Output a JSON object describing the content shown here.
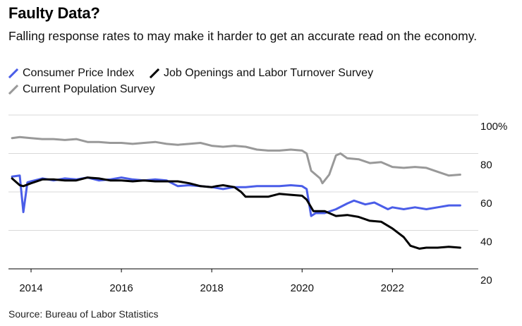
{
  "chart_data": {
    "type": "line",
    "title": "Faulty Data?",
    "subtitle": "Falling response rates to may make it harder to get an accurate read on the economy.",
    "source": "Source: Bureau of Labor Statistics",
    "xlabel": "",
    "ylabel": "",
    "xlim": [
      2013.5,
      2023.9
    ],
    "ylim": [
      20,
      100
    ],
    "x_ticks": [
      2014,
      2016,
      2018,
      2020,
      2022
    ],
    "x_tick_labels": [
      "2014",
      "2016",
      "2018",
      "2020",
      "2022"
    ],
    "y_ticks": [
      20,
      40,
      60,
      80,
      100
    ],
    "y_tick_labels": [
      "20",
      "40",
      "60",
      "80",
      "100%"
    ],
    "series": [
      {
        "name": "Consumer Price Index",
        "color": "#4a5de8",
        "points": [
          [
            2013.58,
            68
          ],
          [
            2013.75,
            68.5
          ],
          [
            2013.83,
            49.5
          ],
          [
            2013.92,
            65
          ],
          [
            2014.0,
            65.5
          ],
          [
            2014.25,
            67
          ],
          [
            2014.5,
            66
          ],
          [
            2014.75,
            67
          ],
          [
            2015.0,
            66.5
          ],
          [
            2015.25,
            67.5
          ],
          [
            2015.5,
            66
          ],
          [
            2015.75,
            66.5
          ],
          [
            2016.0,
            67.5
          ],
          [
            2016.25,
            66.5
          ],
          [
            2016.5,
            66
          ],
          [
            2016.75,
            66.5
          ],
          [
            2017.0,
            66
          ],
          [
            2017.25,
            63
          ],
          [
            2017.5,
            63.5
          ],
          [
            2017.75,
            63
          ],
          [
            2018.0,
            62.5
          ],
          [
            2018.25,
            61.5
          ],
          [
            2018.5,
            62.5
          ],
          [
            2018.75,
            62.5
          ],
          [
            2019.0,
            63
          ],
          [
            2019.25,
            63
          ],
          [
            2019.5,
            63
          ],
          [
            2019.75,
            63.5
          ],
          [
            2020.0,
            63
          ],
          [
            2020.1,
            61.5
          ],
          [
            2020.2,
            47.5
          ],
          [
            2020.3,
            49
          ],
          [
            2020.5,
            49
          ],
          [
            2020.75,
            51
          ],
          [
            2021.0,
            54
          ],
          [
            2021.15,
            55.5
          ],
          [
            2021.4,
            53.5
          ],
          [
            2021.6,
            54.5
          ],
          [
            2021.9,
            51
          ],
          [
            2022.0,
            52
          ],
          [
            2022.25,
            51
          ],
          [
            2022.5,
            52
          ],
          [
            2022.75,
            51
          ],
          [
            2023.0,
            52
          ],
          [
            2023.25,
            53
          ],
          [
            2023.5,
            53
          ]
        ]
      },
      {
        "name": "Job Openings and Labor Turnover Survey",
        "color": "#000000",
        "points": [
          [
            2013.58,
            67
          ],
          [
            2013.75,
            63.5
          ],
          [
            2013.83,
            63
          ],
          [
            2014.0,
            64.5
          ],
          [
            2014.25,
            66.5
          ],
          [
            2014.5,
            66.5
          ],
          [
            2014.75,
            66
          ],
          [
            2015.0,
            66
          ],
          [
            2015.25,
            67.5
          ],
          [
            2015.5,
            67
          ],
          [
            2015.75,
            66
          ],
          [
            2016.0,
            66
          ],
          [
            2016.25,
            65.5
          ],
          [
            2016.5,
            66
          ],
          [
            2016.75,
            65.5
          ],
          [
            2017.0,
            65.5
          ],
          [
            2017.25,
            65.5
          ],
          [
            2017.5,
            64.5
          ],
          [
            2017.75,
            63
          ],
          [
            2018.0,
            62.5
          ],
          [
            2018.1,
            63
          ],
          [
            2018.25,
            63.5
          ],
          [
            2018.5,
            62.5
          ],
          [
            2018.65,
            60
          ],
          [
            2018.75,
            57.5
          ],
          [
            2019.0,
            57.5
          ],
          [
            2019.25,
            57.5
          ],
          [
            2019.5,
            59
          ],
          [
            2019.75,
            58.5
          ],
          [
            2020.0,
            58
          ],
          [
            2020.1,
            56
          ],
          [
            2020.25,
            50
          ],
          [
            2020.5,
            50
          ],
          [
            2020.75,
            47.5
          ],
          [
            2021.0,
            48
          ],
          [
            2021.25,
            47
          ],
          [
            2021.5,
            45
          ],
          [
            2021.75,
            44.5
          ],
          [
            2022.0,
            41
          ],
          [
            2022.25,
            36.5
          ],
          [
            2022.4,
            32
          ],
          [
            2022.6,
            30.5
          ],
          [
            2022.75,
            31
          ],
          [
            2023.0,
            31
          ],
          [
            2023.25,
            31.5
          ],
          [
            2023.5,
            31
          ]
        ]
      },
      {
        "name": "Current Population Survey",
        "color": "#999999",
        "points": [
          [
            2013.58,
            88
          ],
          [
            2013.75,
            88.5
          ],
          [
            2014.0,
            88
          ],
          [
            2014.25,
            87.5
          ],
          [
            2014.5,
            87.5
          ],
          [
            2014.75,
            87
          ],
          [
            2015.0,
            87.5
          ],
          [
            2015.25,
            86
          ],
          [
            2015.5,
            86
          ],
          [
            2015.75,
            85.5
          ],
          [
            2016.0,
            85.5
          ],
          [
            2016.25,
            85
          ],
          [
            2016.5,
            85.5
          ],
          [
            2016.75,
            86
          ],
          [
            2017.0,
            85
          ],
          [
            2017.25,
            84.5
          ],
          [
            2017.5,
            85
          ],
          [
            2017.75,
            85.5
          ],
          [
            2018.0,
            84
          ],
          [
            2018.25,
            83.5
          ],
          [
            2018.5,
            84
          ],
          [
            2018.75,
            83.5
          ],
          [
            2019.0,
            82
          ],
          [
            2019.25,
            81.5
          ],
          [
            2019.5,
            81.5
          ],
          [
            2019.75,
            82
          ],
          [
            2020.0,
            81.5
          ],
          [
            2020.1,
            80
          ],
          [
            2020.2,
            71
          ],
          [
            2020.4,
            67
          ],
          [
            2020.45,
            64.5
          ],
          [
            2020.6,
            69
          ],
          [
            2020.75,
            79
          ],
          [
            2020.85,
            80
          ],
          [
            2021.0,
            77.5
          ],
          [
            2021.25,
            77
          ],
          [
            2021.5,
            75
          ],
          [
            2021.75,
            75.5
          ],
          [
            2022.0,
            73
          ],
          [
            2022.25,
            72.5
          ],
          [
            2022.5,
            73
          ],
          [
            2022.75,
            72.5
          ],
          [
            2023.0,
            70.5
          ],
          [
            2023.25,
            68.5
          ],
          [
            2023.5,
            69
          ]
        ]
      }
    ]
  }
}
